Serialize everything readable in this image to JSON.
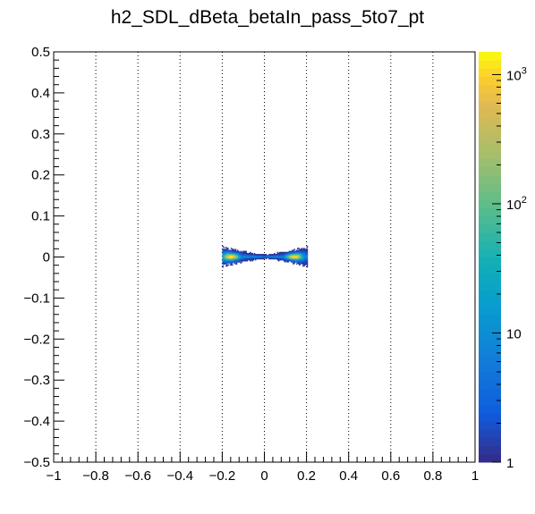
{
  "chart_data": {
    "type": "heatmap",
    "title": "h2_SDL_dBeta_betaIn_pass_5to7_pt",
    "xlim": [
      -1,
      1
    ],
    "ylim": [
      -0.5,
      0.5
    ],
    "x_ticks": [
      -1,
      -0.8,
      -0.6,
      -0.4,
      -0.2,
      0,
      0.2,
      0.4,
      0.6,
      0.8,
      1
    ],
    "x_tick_labels": [
      "−1",
      "−0.8",
      "−0.6",
      "−0.4",
      "−0.2",
      "0",
      "0.2",
      "0.4",
      "0.6",
      "0.8",
      "1"
    ],
    "y_ticks": [
      -0.5,
      -0.4,
      -0.3,
      -0.2,
      -0.1,
      0,
      0.1,
      0.2,
      0.3,
      0.4,
      0.5
    ],
    "y_tick_labels": [
      "−0.5",
      "−0.4",
      "−0.3",
      "−0.2",
      "−0.1",
      "0",
      "0.1",
      "0.2",
      "0.3",
      "0.4",
      "0.5"
    ],
    "x_grid": "dotted vertical",
    "z_scale": "log",
    "z_range": [
      1,
      1500
    ],
    "colorbar_labels": [
      "1",
      "10",
      "10^2",
      "10^3"
    ],
    "colormap": "parula-like (blue to yellow)",
    "distribution": {
      "description_free": true,
      "core": {
        "x": [
          -0.19,
          0.19
        ],
        "y": [
          -0.012,
          0.012
        ]
      },
      "lobes": [
        {
          "center_x": -0.16,
          "center_y": 0.0,
          "peak": 1500
        },
        {
          "center_x": 0.14,
          "center_y": 0.0,
          "peak": 1500
        }
      ],
      "extent_x": [
        -0.2,
        0.2
      ],
      "extent_y": [
        -0.025,
        0.025
      ]
    }
  }
}
